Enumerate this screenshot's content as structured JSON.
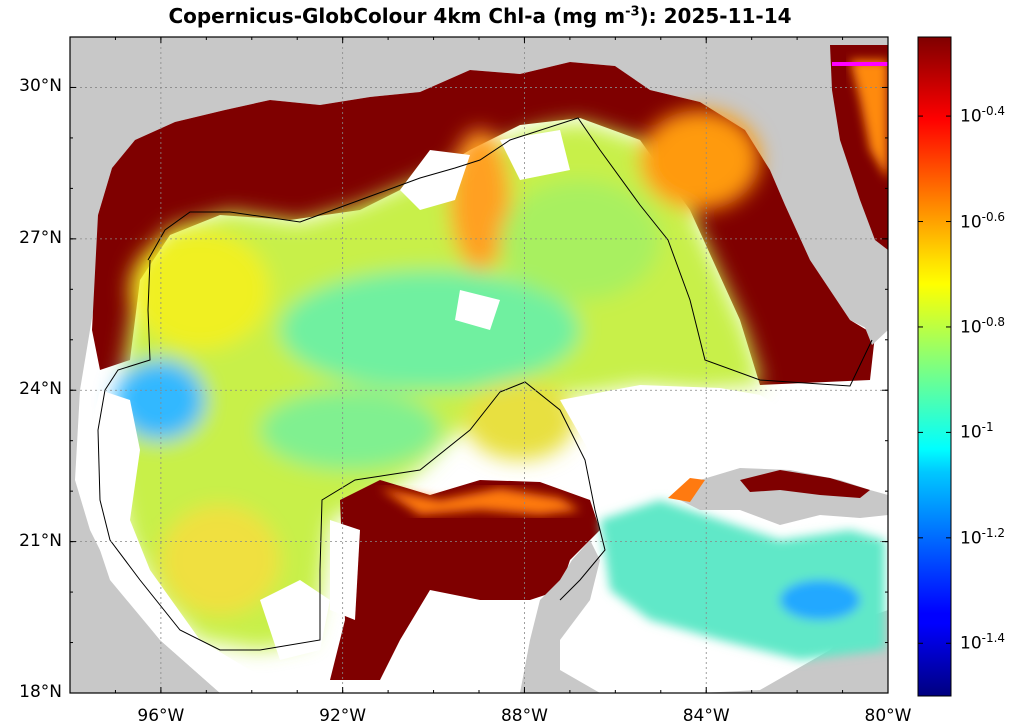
{
  "title": {
    "prefix": "Copernicus-GlobColour 4km Chl-a (mg m",
    "exponent": "-3",
    "suffix": "): 2025-11-14"
  },
  "map": {
    "lon_range": [
      -98,
      -80
    ],
    "lat_range": [
      18,
      31
    ],
    "land_color": "#c8c8c8",
    "nodata_color": "#ffffff",
    "x_ticks": [
      {
        "lon": -96,
        "label": "96°W"
      },
      {
        "lon": -92,
        "label": "92°W"
      },
      {
        "lon": -88,
        "label": "88°W"
      },
      {
        "lon": -84,
        "label": "84°W"
      },
      {
        "lon": -80,
        "label": "80°W"
      }
    ],
    "y_ticks": [
      {
        "lat": 30,
        "label": "30°N"
      },
      {
        "lat": 27,
        "label": "27°N"
      },
      {
        "lat": 24,
        "label": "24°N"
      },
      {
        "lat": 21,
        "label": "21°N"
      },
      {
        "lat": 18,
        "label": "18°N"
      }
    ],
    "grid": true
  },
  "colorbar": {
    "colormap": "jet",
    "log_range": [
      -1.5,
      -0.25
    ],
    "ticks": [
      {
        "exp": -0.4,
        "base": "10",
        "sup": "-0.4"
      },
      {
        "exp": -0.6,
        "base": "10",
        "sup": "-0.6"
      },
      {
        "exp": -0.8,
        "base": "10",
        "sup": "-0.8"
      },
      {
        "exp": -1.0,
        "base": "10",
        "sup": "-1"
      },
      {
        "exp": -1.2,
        "base": "10",
        "sup": "-1.2"
      },
      {
        "exp": -1.4,
        "base": "10",
        "sup": "-1.4"
      }
    ]
  }
}
